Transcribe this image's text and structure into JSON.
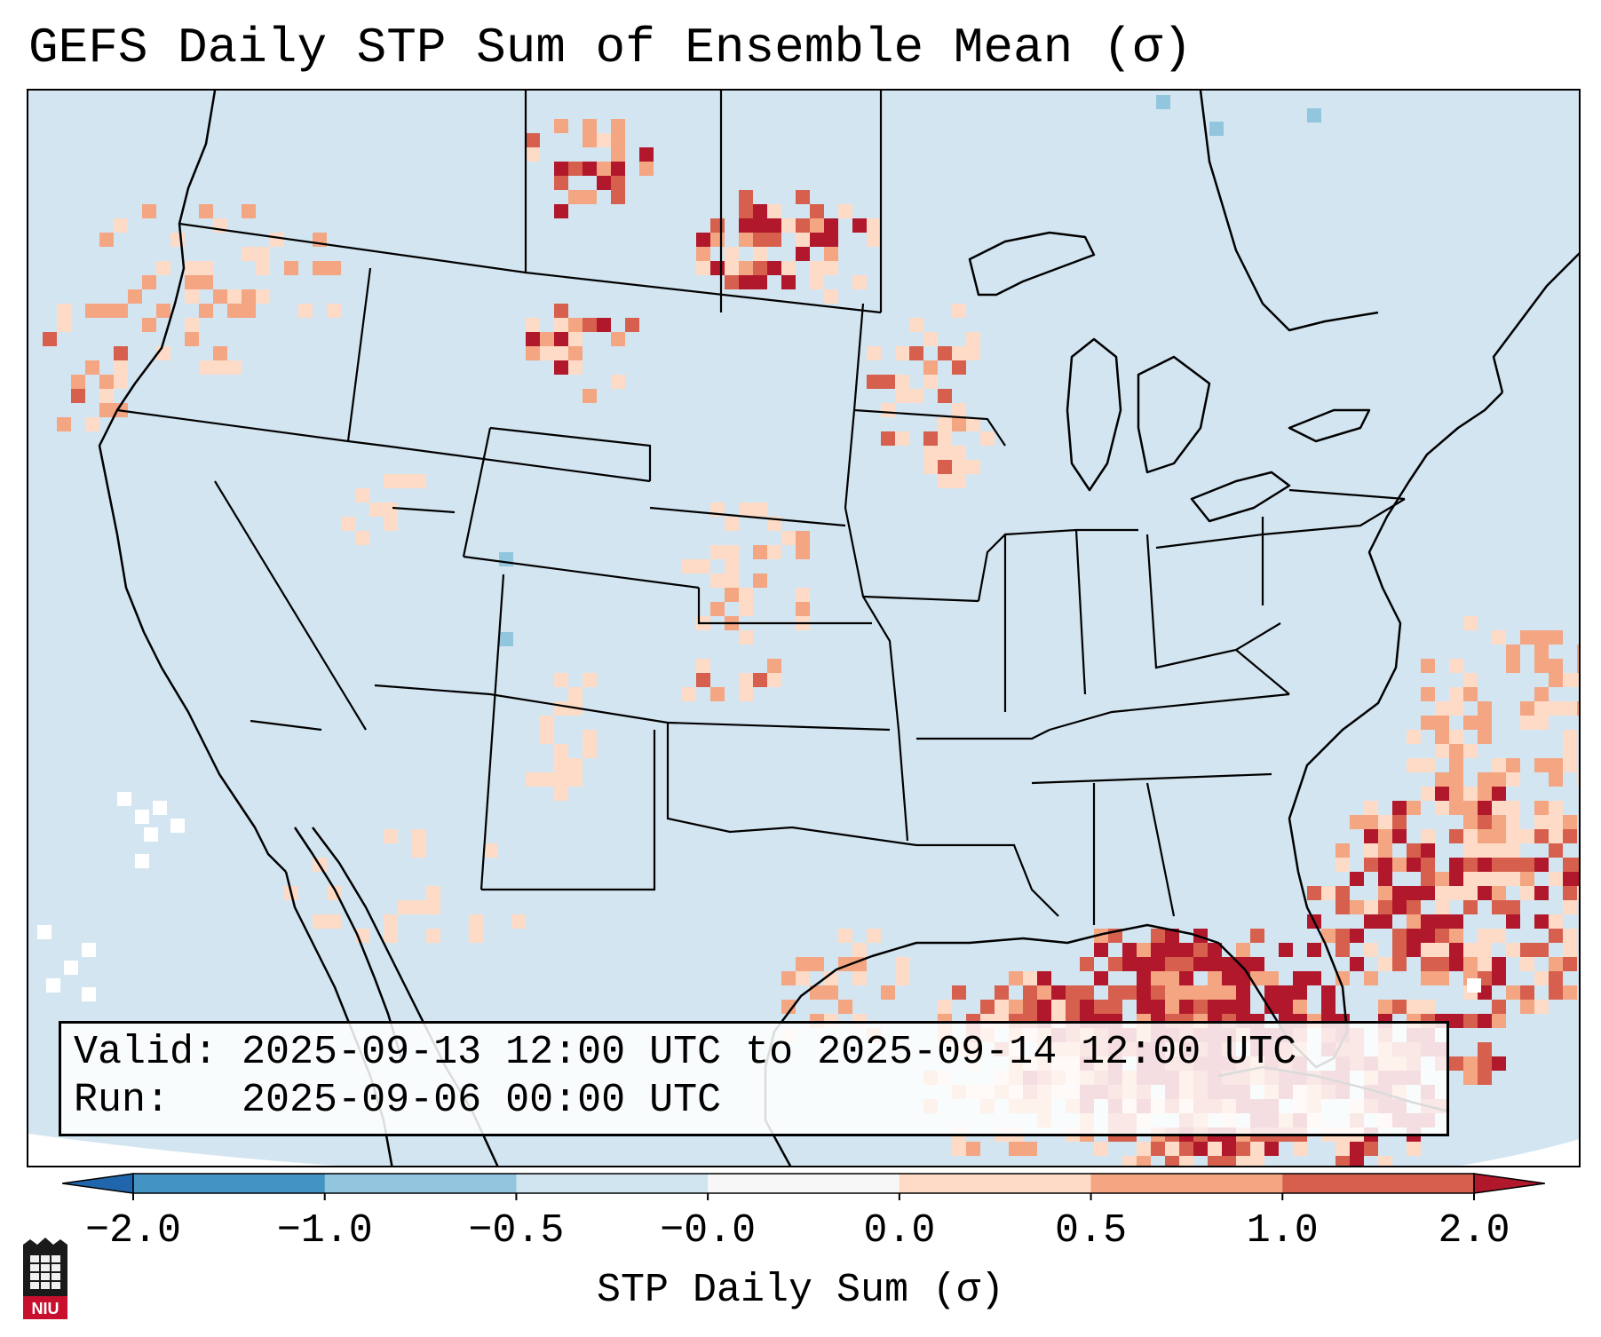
{
  "title": "GEFS Daily STP Sum of Ensemble Mean (σ)",
  "info": {
    "valid_label": "Valid:",
    "valid_value": "2025-09-13 12:00 UTC to 2025-09-14 12:00 UTC",
    "run_label": "Run:",
    "run_value": "2025-09-06 00:00 UTC"
  },
  "colorbar": {
    "label": "STP Daily Sum (σ)",
    "ticks": [
      "−2.0",
      "−1.0",
      "−0.5",
      "−0.0",
      "0.0",
      "0.5",
      "1.0",
      "2.0"
    ],
    "bin_colors": [
      "#2166ac",
      "#4393c3",
      "#92c5de",
      "#d1e5f0",
      "#f7f7f7",
      "#fddbc7",
      "#f4a582",
      "#d6604d",
      "#b2182b"
    ]
  },
  "map": {
    "background_color": "#d3e5f1",
    "legend_colors": {
      "light": "#fddbc7",
      "medium": "#f4a582",
      "strong": "#d6604d",
      "max": "#b2182b",
      "negative": "#92c5de",
      "neutral": "#ffffff"
    }
  },
  "logo": {
    "text": "NIU"
  }
}
